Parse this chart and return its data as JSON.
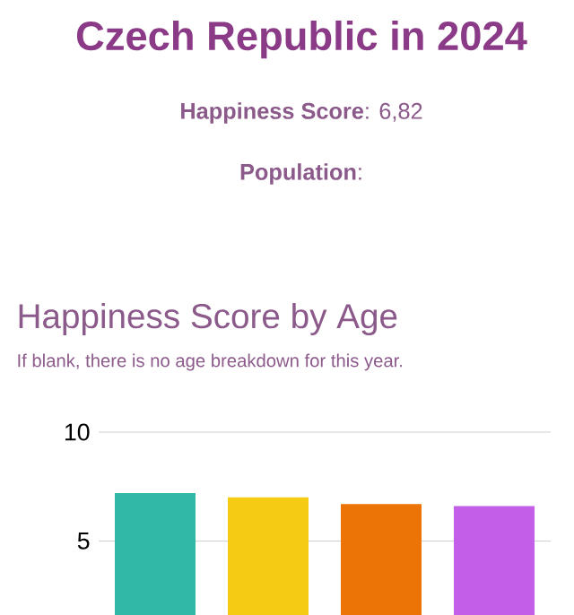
{
  "chart_data": {
    "type": "bar",
    "title": "Czech Republic in 2024",
    "subtitle": "Happiness Score by Age",
    "annotations": [
      "**Happiness Score**: 6,82",
      "**Population**:",
      "If blank, there is no age breakdown for this year."
    ],
    "categories": [
      null,
      null,
      null,
      null
    ],
    "values": [
      7.2,
      7.0,
      6.7,
      6.6
    ],
    "colors": [
      "#32b8a6",
      "#f5cb14",
      "#ec7305",
      "#c25ee8"
    ],
    "ylim": [
      1.6,
      10
    ],
    "yticks": [
      5,
      10
    ],
    "grid": "y"
  }
}
